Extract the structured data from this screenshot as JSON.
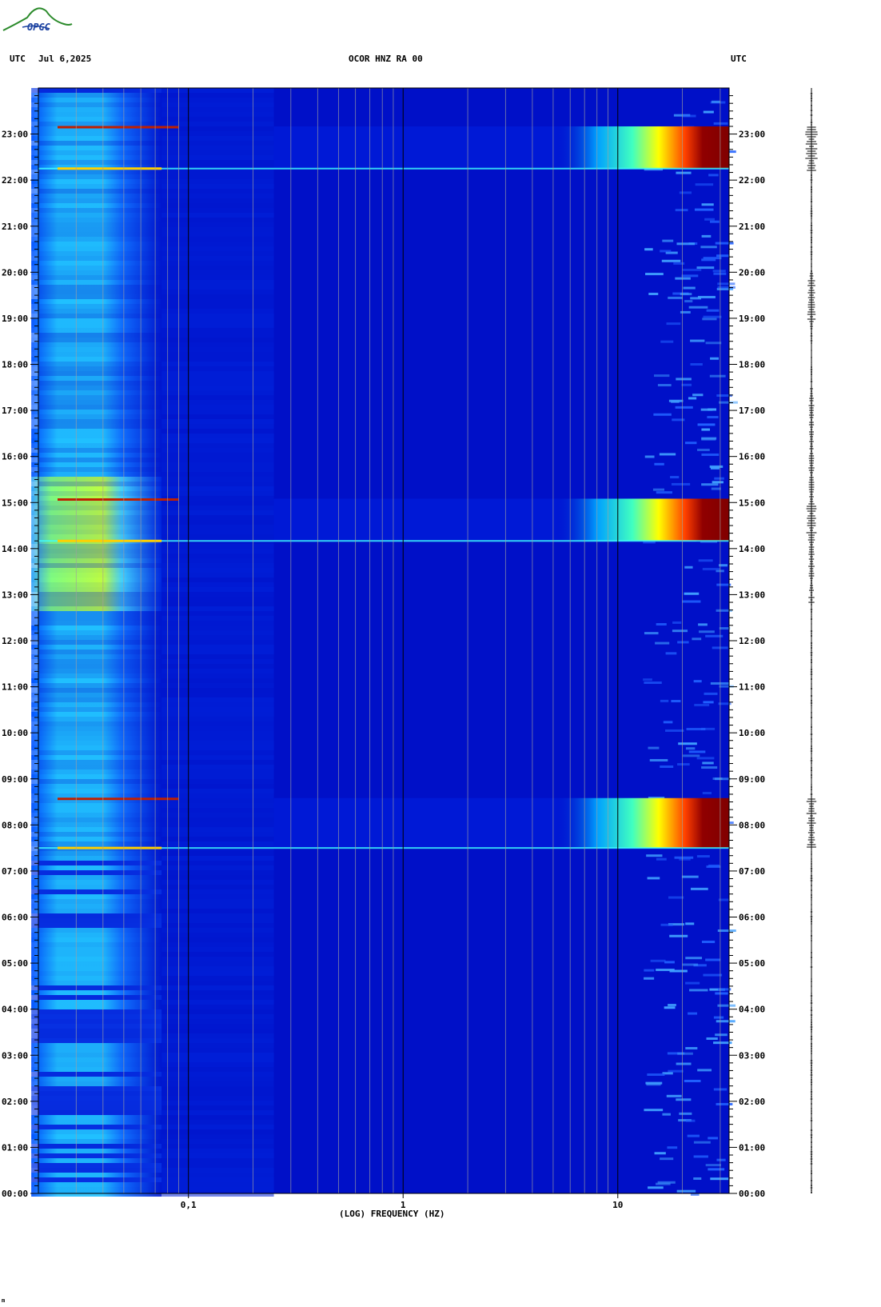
{
  "header": {
    "left_label": "UTC",
    "date": "Jul 6,2025",
    "station": "OCOR HNZ RA 00",
    "right_label": "UTC",
    "logo_text": "OPGC"
  },
  "footer_mark": "m",
  "chart_data": {
    "type": "heatmap",
    "title": "OCOR HNZ RA 00",
    "xlabel": "(LOG) FREQUENCY (HZ)",
    "ylabel": "UTC",
    "x_scale": "log",
    "x_range_hz": [
      0.02,
      33
    ],
    "x_ticks": [
      {
        "value": 0.1,
        "label": "0,1"
      },
      {
        "value": 1,
        "label": "1"
      },
      {
        "value": 10,
        "label": "10"
      }
    ],
    "y_range_hours": [
      0,
      24
    ],
    "y_ticks": [
      "00:00",
      "01:00",
      "02:00",
      "03:00",
      "04:00",
      "05:00",
      "06:00",
      "07:00",
      "08:00",
      "09:00",
      "10:00",
      "11:00",
      "12:00",
      "13:00",
      "14:00",
      "15:00",
      "16:00",
      "17:00",
      "18:00",
      "19:00",
      "20:00",
      "21:00",
      "22:00",
      "23:00"
    ],
    "colormap": [
      "#00008b",
      "#0000ff",
      "#0080ff",
      "#00ffff",
      "#80ff80",
      "#ffff00",
      "#ff8000",
      "#ff0000",
      "#800000"
    ],
    "energetic_events_utc": [
      {
        "start": "07:30",
        "end": "08:35"
      },
      {
        "start": "14:10",
        "end": "15:05"
      },
      {
        "start": "22:15",
        "end": "23:10"
      }
    ]
  }
}
